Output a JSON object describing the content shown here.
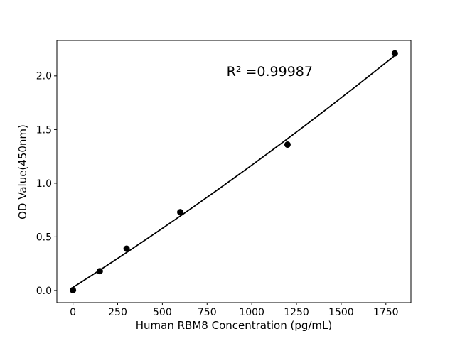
{
  "chart_data": {
    "type": "scatter",
    "title": "",
    "xlabel": "Human RBM8 Concentration (pg/mL)",
    "ylabel": "OD Value(450nm)",
    "x": [
      0,
      150,
      300,
      600,
      1200,
      1800
    ],
    "y": [
      0.003,
      0.18,
      0.39,
      0.73,
      1.36,
      2.21
    ],
    "xlim": [
      -90,
      1890
    ],
    "ylim": [
      -0.113,
      2.33
    ],
    "xticks": [
      0,
      250,
      500,
      750,
      1000,
      1250,
      1500,
      1750
    ],
    "xtick_labels": [
      "0",
      "250",
      "500",
      "750",
      "1000",
      "1250",
      "1500",
      "1750"
    ],
    "yticks": [
      0,
      0.5,
      1.0,
      1.5,
      2.0
    ],
    "ytick_labels": [
      "0.0",
      "0.5",
      "1.0",
      "1.5",
      "2.0"
    ],
    "grid": false,
    "legend": false,
    "annotation": {
      "text": "R² =0.99987",
      "x": 1100,
      "y": 2.04
    },
    "trendline": {
      "type": "quadratic",
      "x_start": 0,
      "x_end": 1800
    },
    "colors": {
      "marker": "#000000",
      "line": "#000000",
      "text": "#000000",
      "spine": "#000000",
      "background": "#ffffff"
    }
  }
}
